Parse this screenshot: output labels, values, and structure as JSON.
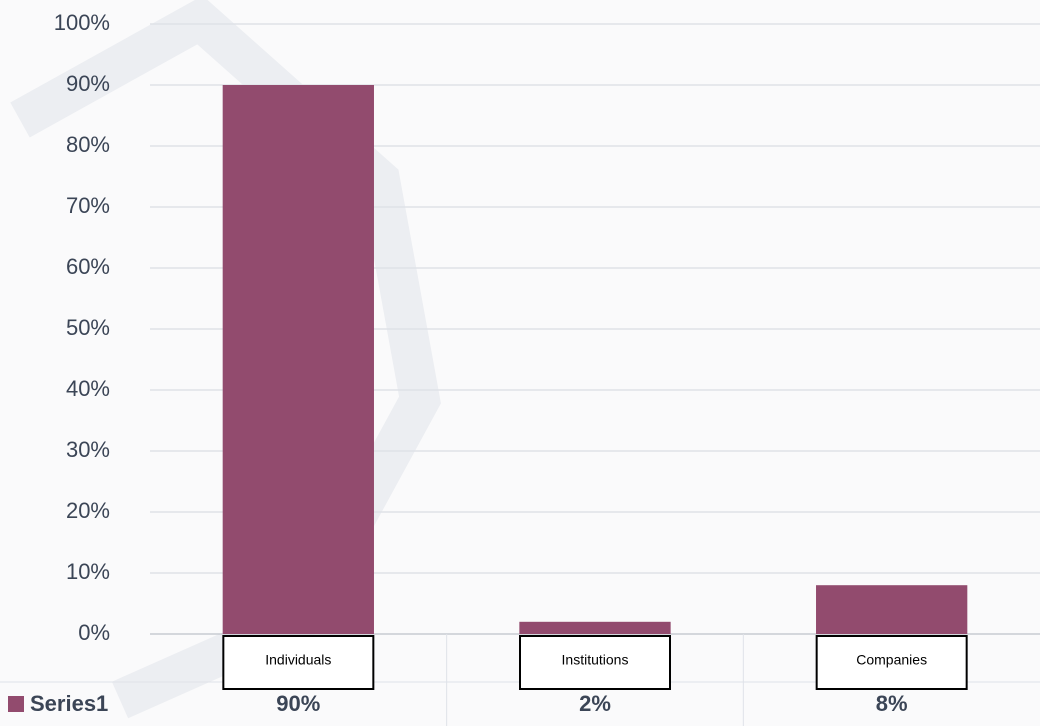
{
  "chart_data": {
    "type": "bar",
    "categories": [
      "Individuals",
      "Institutions",
      "Companies"
    ],
    "series": [
      {
        "name": "Series1",
        "color": "#924b6e",
        "values": [
          90,
          2,
          8
        ],
        "value_labels": [
          "90%",
          "2%",
          "8%"
        ]
      }
    ],
    "ylim": [
      0,
      100
    ],
    "yticks": [
      {
        "value": 0,
        "label": "0%"
      },
      {
        "value": 10,
        "label": "10%"
      },
      {
        "value": 20,
        "label": "20%"
      },
      {
        "value": 30,
        "label": "30%"
      },
      {
        "value": 40,
        "label": "40%"
      },
      {
        "value": 50,
        "label": "50%"
      },
      {
        "value": 60,
        "label": "60%"
      },
      {
        "value": 70,
        "label": "70%"
      },
      {
        "value": 80,
        "label": "80%"
      },
      {
        "value": 90,
        "label": "90%"
      },
      {
        "value": 100,
        "label": "100%"
      }
    ],
    "grid": true
  }
}
